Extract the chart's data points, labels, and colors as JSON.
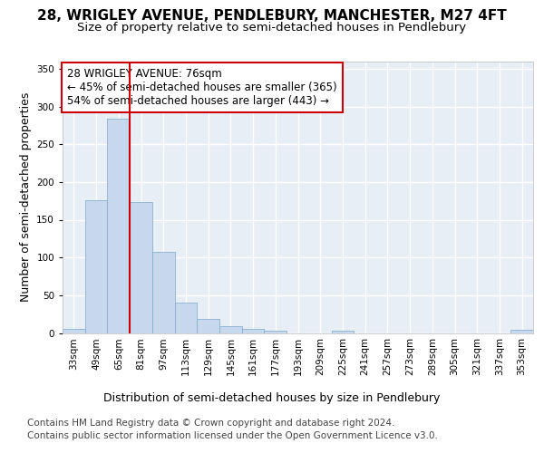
{
  "title_line1": "28, WRIGLEY AVENUE, PENDLEBURY, MANCHESTER, M27 4FT",
  "title_line2": "Size of property relative to semi-detached houses in Pendlebury",
  "xlabel": "Distribution of semi-detached houses by size in Pendlebury",
  "ylabel": "Number of semi-detached properties",
  "categories": [
    "33sqm",
    "49sqm",
    "65sqm",
    "81sqm",
    "97sqm",
    "113sqm",
    "129sqm",
    "145sqm",
    "161sqm",
    "177sqm",
    "193sqm",
    "209sqm",
    "225sqm",
    "241sqm",
    "257sqm",
    "273sqm",
    "289sqm",
    "305sqm",
    "321sqm",
    "337sqm",
    "353sqm"
  ],
  "values": [
    6,
    176,
    284,
    174,
    107,
    40,
    19,
    9,
    6,
    3,
    0,
    0,
    3,
    0,
    0,
    0,
    0,
    0,
    0,
    0,
    4
  ],
  "bar_color": "#c8d8ec",
  "bar_edge_color": "#7aa8cc",
  "vline_x": 2.5,
  "vline_color": "#cc0000",
  "annotation_text": "28 WRIGLEY AVENUE: 76sqm\n← 45% of semi-detached houses are smaller (365)\n54% of semi-detached houses are larger (443) →",
  "annotation_box_color": "#ffffff",
  "annotation_box_edge": "#cc0000",
  "ylim": [
    0,
    360
  ],
  "yticks": [
    0,
    50,
    100,
    150,
    200,
    250,
    300,
    350
  ],
  "background_color": "#e8eef5",
  "grid_color": "#ffffff",
  "footer_line1": "Contains HM Land Registry data © Crown copyright and database right 2024.",
  "footer_line2": "Contains public sector information licensed under the Open Government Licence v3.0.",
  "title_fontsize": 11,
  "subtitle_fontsize": 9.5,
  "axis_label_fontsize": 9,
  "tick_fontsize": 7.5,
  "annotation_fontsize": 8.5,
  "footer_fontsize": 7.5
}
